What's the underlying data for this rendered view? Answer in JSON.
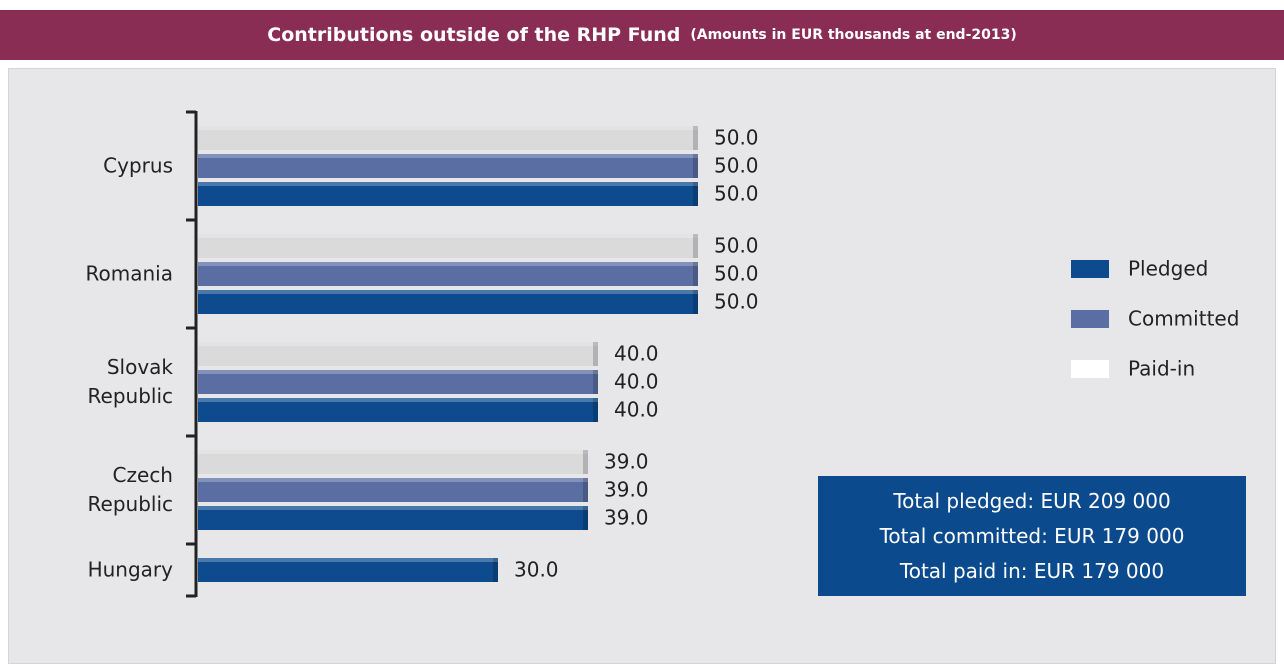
{
  "chart_data": {
    "type": "bar",
    "orientation": "horizontal",
    "title": "Contributions outside of the RHP Fund",
    "subtitle": "(Amounts in EUR thousands at end-2013)",
    "categories": [
      "Cyprus",
      "Romania",
      "Slovak Republic",
      "Czech Republic",
      "Hungary"
    ],
    "series": [
      {
        "name": "Pledged",
        "color": "#0d4b8e",
        "values": [
          50,
          50,
          40,
          39,
          30
        ],
        "value_labels": [
          "50.0",
          "50.0",
          "40.0",
          "39.0",
          "30.0"
        ]
      },
      {
        "name": "Committed",
        "color": "#5a6ea3",
        "values": [
          50,
          50,
          40,
          39,
          null
        ],
        "value_labels": [
          "50.0",
          "50.0",
          "40.0",
          "39.0",
          null
        ]
      },
      {
        "name": "Paid-in",
        "color": "#dadadb",
        "values": [
          50,
          50,
          40,
          39,
          null
        ],
        "value_labels": [
          "50.0",
          "50.0",
          "40.0",
          "39.0",
          null
        ]
      }
    ],
    "annotations": [
      "Total pledged: EUR 209 000",
      "Total committed: EUR 179 000",
      "Total paid in: EUR 179 000"
    ]
  }
}
